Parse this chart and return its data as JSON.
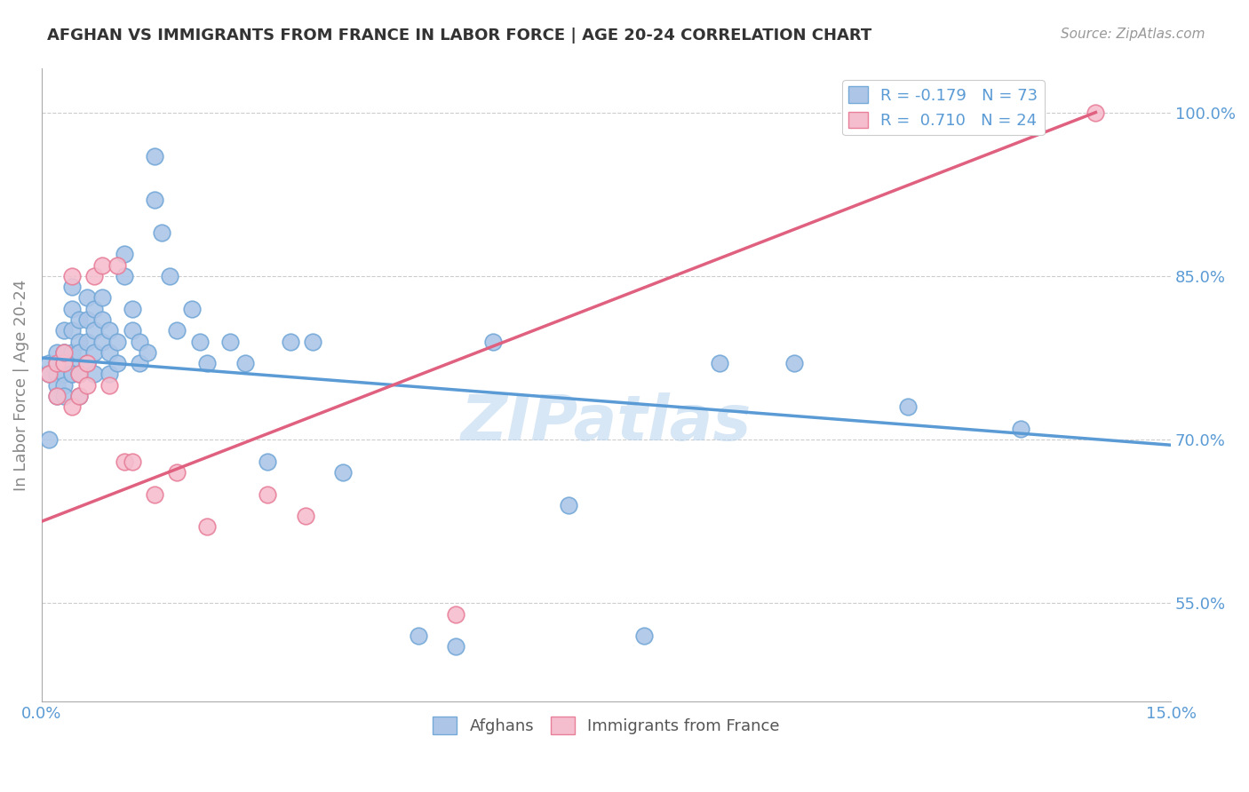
{
  "title": "AFGHAN VS IMMIGRANTS FROM FRANCE IN LABOR FORCE | AGE 20-24 CORRELATION CHART",
  "source": "Source: ZipAtlas.com",
  "ylabel": "In Labor Force | Age 20-24",
  "xmin": 0.0,
  "xmax": 0.15,
  "ymin": 0.46,
  "ymax": 1.04,
  "yticks": [
    0.55,
    0.7,
    0.85,
    1.0
  ],
  "ytick_labels": [
    "55.0%",
    "70.0%",
    "85.0%",
    "100.0%"
  ],
  "xticks": [
    0.0,
    0.03,
    0.06,
    0.09,
    0.12,
    0.15
  ],
  "xtick_labels": [
    "0.0%",
    "",
    "",
    "",
    "",
    "15.0%"
  ],
  "blue_color": "#adc6e8",
  "blue_edge_color": "#74a9d8",
  "pink_color": "#f5bece",
  "pink_edge_color": "#e8809a",
  "blue_line_color": "#5b9bd5",
  "pink_line_color": "#e06080",
  "legend_blue_R": "-0.179",
  "legend_blue_N": "73",
  "legend_pink_R": "0.710",
  "legend_pink_N": "24",
  "watermark": "ZIPatlas",
  "blue_line_x0": 0.0,
  "blue_line_y0": 0.775,
  "blue_line_x1": 0.15,
  "blue_line_y1": 0.695,
  "pink_line_x0": 0.0,
  "pink_line_y0": 0.625,
  "pink_line_x1": 0.14,
  "pink_line_y1": 1.0,
  "blue_points_x": [
    0.001,
    0.001,
    0.001,
    0.002,
    0.002,
    0.002,
    0.002,
    0.002,
    0.003,
    0.003,
    0.003,
    0.003,
    0.003,
    0.003,
    0.003,
    0.004,
    0.004,
    0.004,
    0.004,
    0.004,
    0.004,
    0.004,
    0.005,
    0.005,
    0.005,
    0.005,
    0.005,
    0.006,
    0.006,
    0.006,
    0.006,
    0.007,
    0.007,
    0.007,
    0.007,
    0.008,
    0.008,
    0.008,
    0.009,
    0.009,
    0.009,
    0.01,
    0.01,
    0.011,
    0.011,
    0.012,
    0.012,
    0.013,
    0.013,
    0.014,
    0.015,
    0.015,
    0.016,
    0.017,
    0.018,
    0.02,
    0.021,
    0.022,
    0.025,
    0.027,
    0.03,
    0.033,
    0.036,
    0.04,
    0.05,
    0.055,
    0.06,
    0.07,
    0.08,
    0.09,
    0.1,
    0.115,
    0.13
  ],
  "blue_points_y": [
    0.77,
    0.76,
    0.7,
    0.77,
    0.76,
    0.75,
    0.74,
    0.78,
    0.78,
    0.77,
    0.76,
    0.75,
    0.74,
    0.78,
    0.8,
    0.77,
    0.76,
    0.78,
    0.8,
    0.82,
    0.84,
    0.76,
    0.79,
    0.81,
    0.78,
    0.76,
    0.74,
    0.83,
    0.81,
    0.79,
    0.77,
    0.82,
    0.8,
    0.78,
    0.76,
    0.79,
    0.81,
    0.83,
    0.8,
    0.78,
    0.76,
    0.79,
    0.77,
    0.87,
    0.85,
    0.82,
    0.8,
    0.79,
    0.77,
    0.78,
    0.92,
    0.96,
    0.89,
    0.85,
    0.8,
    0.82,
    0.79,
    0.77,
    0.79,
    0.77,
    0.68,
    0.79,
    0.79,
    0.67,
    0.52,
    0.51,
    0.79,
    0.64,
    0.52,
    0.77,
    0.77,
    0.73,
    0.71
  ],
  "pink_points_x": [
    0.001,
    0.002,
    0.002,
    0.003,
    0.003,
    0.004,
    0.004,
    0.005,
    0.005,
    0.006,
    0.006,
    0.007,
    0.008,
    0.009,
    0.01,
    0.011,
    0.012,
    0.015,
    0.018,
    0.022,
    0.03,
    0.035,
    0.055,
    0.14
  ],
  "pink_points_y": [
    0.76,
    0.74,
    0.77,
    0.77,
    0.78,
    0.73,
    0.85,
    0.74,
    0.76,
    0.77,
    0.75,
    0.85,
    0.86,
    0.75,
    0.86,
    0.68,
    0.68,
    0.65,
    0.67,
    0.62,
    0.65,
    0.63,
    0.54,
    1.0
  ]
}
